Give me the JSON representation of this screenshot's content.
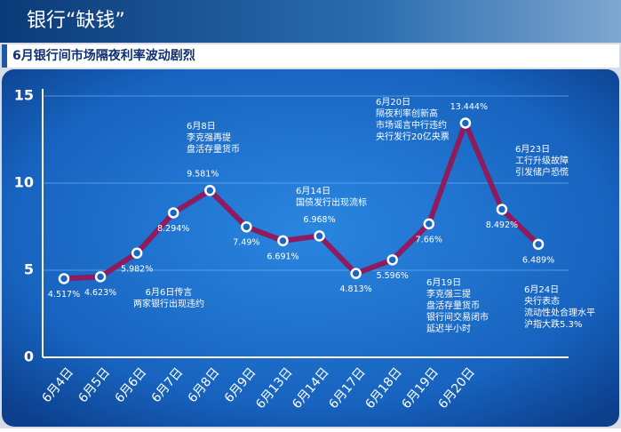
{
  "chart_data": {
    "type": "line",
    "title": "银行“缺钱”",
    "subtitle": "6月银行间市场隔夜利率波动剧烈",
    "categories": [
      "6月4日",
      "6月5日",
      "6月6日",
      "6月7日",
      "6月8日",
      "6月9日",
      "6月13日",
      "6月14日",
      "6月17日",
      "6月18日",
      "6月19日",
      "6月20日",
      null,
      null
    ],
    "series": [
      {
        "name": "隔夜利率",
        "color": "#8c1c5e",
        "values": [
          4.517,
          4.623,
          5.982,
          8.294,
          9.581,
          7.49,
          6.691,
          6.968,
          4.813,
          5.596,
          7.66,
          13.444,
          8.492,
          6.489
        ],
        "value_labels": [
          "4.517%",
          "4.623%",
          "5.982%",
          "8.294%",
          "9.581%",
          "7.49%",
          "6.691%",
          "6.968%",
          "4.813%",
          "5.596%",
          "7.66%",
          "13.444%",
          "8.492%",
          "6.489%"
        ]
      }
    ],
    "ylim": [
      0,
      15
    ],
    "yticks": [
      0,
      5,
      10,
      15
    ],
    "grid": true,
    "annotations": [
      [
        "6月8日",
        "李克强再提",
        "盘活存量货币"
      ],
      [
        "6月14日",
        "国债发行出现流标"
      ],
      [
        "6月20日",
        "隔夜利率创新高",
        "市场谣言中行违约",
        "央行发行20亿央票"
      ],
      [
        "6月23日",
        "工行升级故障",
        "引发储户恐慌"
      ],
      [
        "6月6日传言",
        "两家银行出现违约"
      ],
      [
        "6月19日",
        "李克强三提",
        "盘活存量货币",
        "银行间交易闭市",
        "延迟半小时"
      ],
      [
        "6月24日",
        "央行表态",
        "流动性处合理水平",
        "沪指大跌5.3%"
      ]
    ]
  }
}
